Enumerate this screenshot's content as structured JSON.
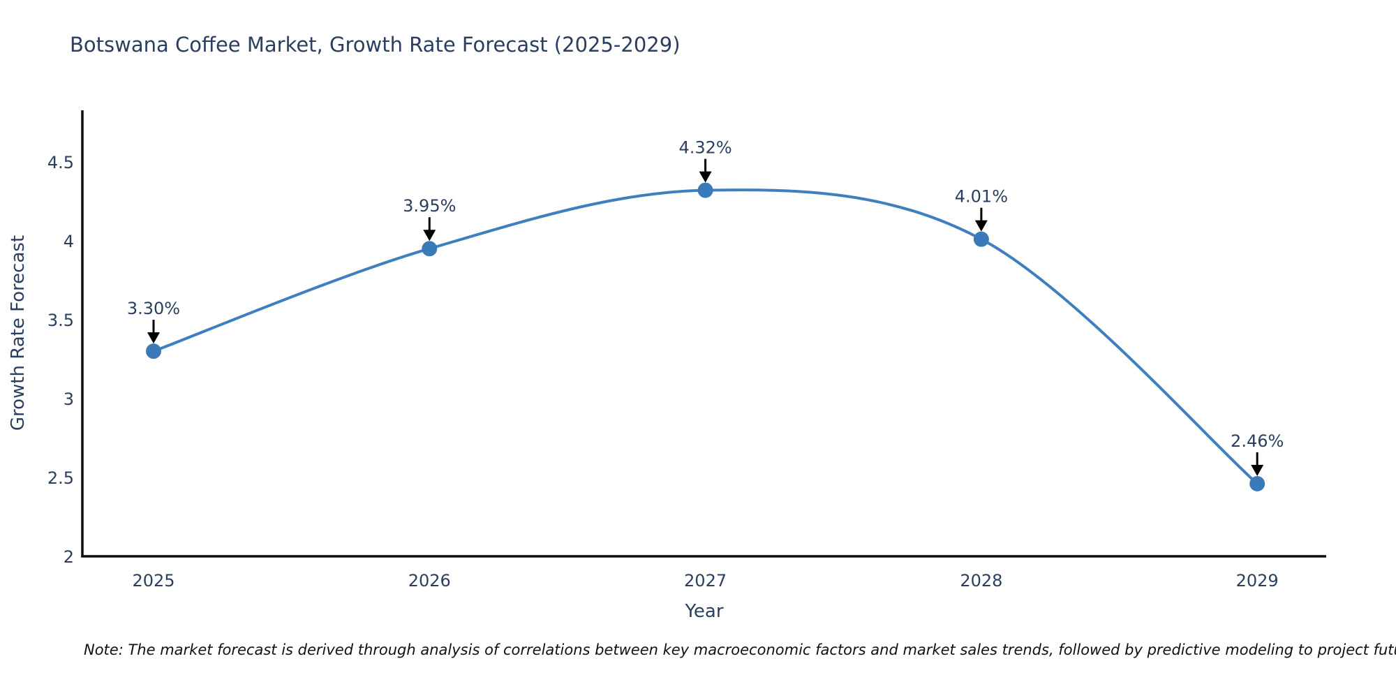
{
  "chart_data": {
    "type": "line",
    "title": "Botswana Coffee Market, Growth Rate Forecast (2025-2029)",
    "xlabel": "Year",
    "ylabel": "Growth Rate Forecast",
    "x": [
      2025,
      2026,
      2027,
      2028,
      2029
    ],
    "series": [
      {
        "name": "Growth Rate Forecast",
        "values": [
          3.3,
          3.95,
          4.32,
          4.01,
          2.46
        ]
      }
    ],
    "point_labels": [
      "3.30%",
      "3.95%",
      "4.32%",
      "4.01%",
      "2.46%"
    ],
    "xtick_labels": [
      "2025",
      "2026",
      "2027",
      "2028",
      "2029"
    ],
    "yticks": [
      2,
      2.5,
      3,
      3.5,
      4,
      4.5
    ],
    "ytick_labels": [
      "2",
      "2.5",
      "3",
      "3.5",
      "4",
      "4.5"
    ],
    "xlim": [
      2024.742,
      2029.25
    ],
    "ylim": [
      2,
      4.827
    ],
    "grid": false,
    "legend_position": "none",
    "line_shape": "spline",
    "colors": {
      "line": "#3f7fbf",
      "marker": "#3a7ab8",
      "text": "#2a3f5f",
      "axis": "#0d0d0d",
      "annotation_arrow": "#000000"
    },
    "note": "Note: The market forecast is derived through analysis of correlations between key macroeconomic factors and market sales trends, followed by predictive modeling to project future sales"
  }
}
